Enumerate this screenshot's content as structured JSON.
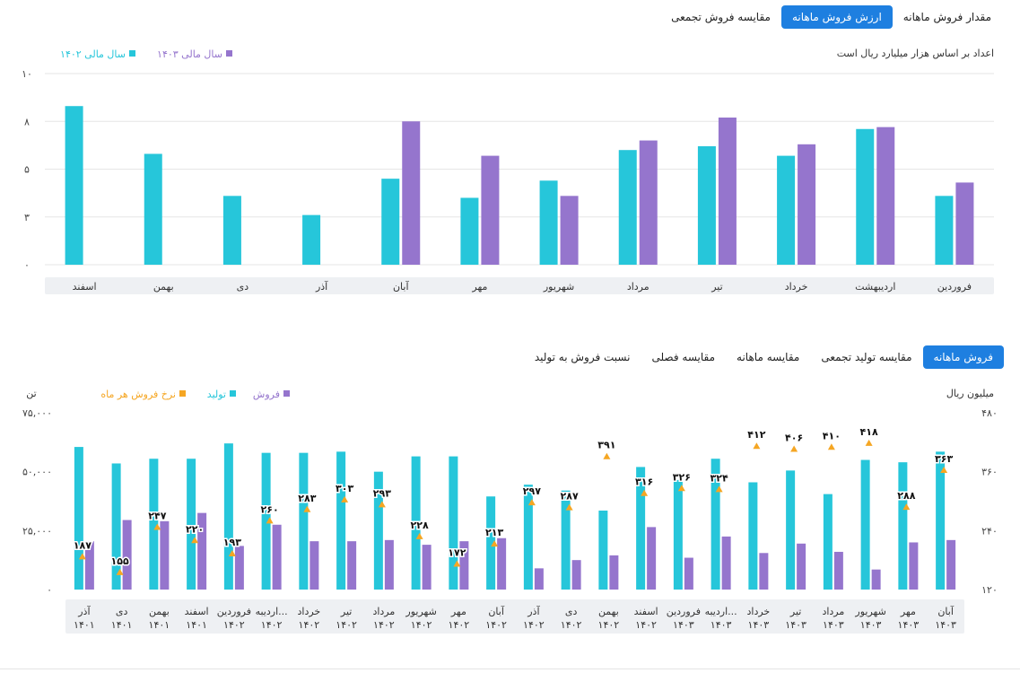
{
  "tabs_top": [
    {
      "label": "مقدار فروش ماهانه",
      "active": false
    },
    {
      "label": "ارزش فروش ماهانه",
      "active": true
    },
    {
      "label": "مقایسه فروش تجمعی",
      "active": false
    }
  ],
  "tabs_bottom": [
    {
      "label": "فروش ماهانه",
      "active": true
    },
    {
      "label": "مقایسه تولید تجمعی",
      "active": false
    },
    {
      "label": "مقایسه ماهانه",
      "active": false
    },
    {
      "label": "مقایسه فصلی",
      "active": false
    },
    {
      "label": "نسبت فروش به تولید",
      "active": false
    }
  ],
  "chart_data": [
    {
      "type": "bar",
      "unit_note": "اعداد بر اساس هزار میلیارد ریال است",
      "categories": [
        "فروردین",
        "اردیبهشت",
        "خرداد",
        "تیر",
        "مرداد",
        "شهریور",
        "مهر",
        "آبان",
        "آذر",
        "دی",
        "بهمن",
        "اسفند"
      ],
      "ylim": [
        0,
        10
      ],
      "yticks": [
        "۰",
        "۳",
        "۵",
        "۸",
        "۱۰"
      ],
      "legend_position": "top-left",
      "series": [
        {
          "name": "سال مالی ۱۴۰۲",
          "color": "#26c6da",
          "values": [
            3.6,
            7.1,
            5.7,
            6.2,
            6.0,
            4.4,
            3.5,
            4.5,
            2.6,
            3.6,
            5.8,
            8.3
          ]
        },
        {
          "name": "سال مالی ۱۴۰۳",
          "color": "#9575cd",
          "values": [
            4.3,
            7.2,
            6.3,
            7.7,
            6.5,
            3.6,
            5.7,
            7.5,
            null,
            null,
            null,
            null
          ]
        }
      ]
    },
    {
      "type": "bar",
      "left_axis_label": "تن",
      "right_axis_label": "میلیون ریال",
      "categories": [
        {
          "month": "آذر",
          "year": "۱۴۰۱"
        },
        {
          "month": "دی",
          "year": "۱۴۰۱"
        },
        {
          "month": "بهمن",
          "year": "۱۴۰۱"
        },
        {
          "month": "اسفند",
          "year": "۱۴۰۱"
        },
        {
          "month": "فروردین",
          "year": "۱۴۰۲"
        },
        {
          "month": "اردیبه...",
          "year": "۱۴۰۲"
        },
        {
          "month": "خرداد",
          "year": "۱۴۰۲"
        },
        {
          "month": "تیر",
          "year": "۱۴۰۲"
        },
        {
          "month": "مرداد",
          "year": "۱۴۰۲"
        },
        {
          "month": "شهریور",
          "year": "۱۴۰۲"
        },
        {
          "month": "مهر",
          "year": "۱۴۰۲"
        },
        {
          "month": "آبان",
          "year": "۱۴۰۲"
        },
        {
          "month": "آذر",
          "year": "۱۴۰۲"
        },
        {
          "month": "دی",
          "year": "۱۴۰۲"
        },
        {
          "month": "بهمن",
          "year": "۱۴۰۲"
        },
        {
          "month": "اسفند",
          "year": "۱۴۰۲"
        },
        {
          "month": "فروردین",
          "year": "۱۴۰۳"
        },
        {
          "month": "اردیبه...",
          "year": "۱۴۰۳"
        },
        {
          "month": "خرداد",
          "year": "۱۴۰۳"
        },
        {
          "month": "تیر",
          "year": "۱۴۰۳"
        },
        {
          "month": "مرداد",
          "year": "۱۴۰۳"
        },
        {
          "month": "شهریور",
          "year": "۱۴۰۳"
        },
        {
          "month": "مهر",
          "year": "۱۴۰۳"
        },
        {
          "month": "آبان",
          "year": "۱۴۰۳"
        }
      ],
      "ylim_left": [
        0,
        75000
      ],
      "yticks_left": [
        "۰",
        "۲۵,۰۰۰",
        "۵۰,۰۰۰",
        "۷۵,۰۰۰"
      ],
      "ylim_right": [
        120,
        480
      ],
      "yticks_right": [
        "۱۲۰",
        "۲۴۰",
        "۳۶۰",
        "۴۸۰"
      ],
      "legend_position": "top-left",
      "series": [
        {
          "name": "فروش",
          "color": "#9575cd",
          "axis": "left",
          "values": [
            20500,
            29500,
            29000,
            32500,
            18500,
            27500,
            20500,
            20500,
            21000,
            19000,
            20500,
            21800,
            9000,
            12500,
            14500,
            26500,
            13500,
            22500,
            15500,
            19500,
            16000,
            8500,
            20000,
            21000
          ]
        },
        {
          "name": "تولید",
          "color": "#26c6da",
          "axis": "left",
          "values": [
            60500,
            53500,
            55500,
            55500,
            62000,
            58000,
            58000,
            58500,
            50000,
            56500,
            56500,
            39500,
            44500,
            42000,
            33500,
            52000,
            46500,
            55500,
            45500,
            50500,
            40500,
            55000,
            54000,
            58500
          ]
        },
        {
          "name": "نرخ فروش هر ماه",
          "color": "#f5a623",
          "axis": "right",
          "values": [
            187,
            155,
            247,
            220,
            193,
            260,
            283,
            303,
            293,
            228,
            172,
            213,
            297,
            287,
            391,
            316,
            326,
            324,
            412,
            406,
            410,
            418,
            288,
            363
          ],
          "labels": [
            "۱۸۷",
            "۱۵۵",
            "۲۴۷",
            "۲۲۰",
            "۱۹۳",
            "۲۶۰",
            "۲۸۳",
            "۳۰۳",
            "۲۹۳",
            "۲۲۸",
            "۱۷۲",
            "۲۱۳",
            "۲۹۷",
            "۲۸۷",
            "۳۹۱",
            "۳۱۶",
            "۳۲۶",
            "۳۲۴",
            "۴۱۲",
            "۴۰۶",
            "۴۱۰",
            "۴۱۸",
            "۲۸۸",
            "۳۶۳"
          ]
        }
      ]
    }
  ]
}
